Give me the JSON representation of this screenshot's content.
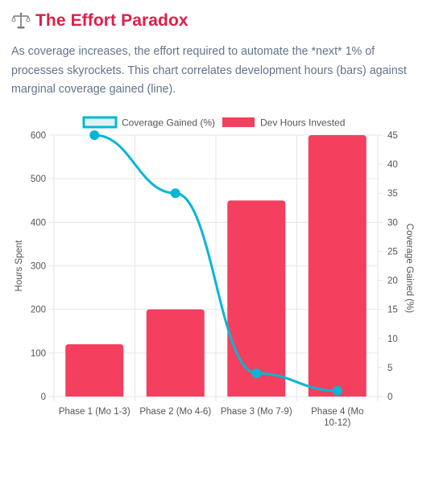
{
  "header": {
    "icon": "balance-scale-icon",
    "title": "The Effort Paradox",
    "description": "As coverage increases, the effort required to automate the *next* 1% of processes skyrockets. This chart correlates development hours (bars) against marginal coverage gained (line)."
  },
  "colors": {
    "title": "#e11d48",
    "bars": "#f43f5e",
    "line": "#06b6d4",
    "legend_line_fill": "#e0f2f5"
  },
  "chart_data": {
    "type": "bar",
    "categories": [
      [
        "Phase 1 (Mo 1-3)"
      ],
      [
        "Phase 2 (Mo 4-6)"
      ],
      [
        "Phase 3 (Mo 7-9)"
      ],
      [
        "Phase 4 (Mo",
        "10-12)"
      ]
    ],
    "series": [
      {
        "name": "Dev Hours Invested",
        "type": "bar",
        "axis": "left",
        "values": [
          120,
          200,
          450,
          600
        ]
      },
      {
        "name": "Coverage Gained (%)",
        "type": "line",
        "axis": "right",
        "values": [
          45,
          35,
          4,
          1
        ]
      }
    ],
    "ylabel": "Hours Spent",
    "y2label": "Coverage Gained (%)",
    "ylim": [
      0,
      600
    ],
    "y2lim": [
      0,
      45
    ],
    "yticks": [
      0,
      100,
      200,
      300,
      400,
      500,
      600
    ],
    "y2ticks": [
      0,
      5,
      10,
      15,
      20,
      25,
      30,
      35,
      40,
      45
    ],
    "legend": [
      "Coverage Gained (%)",
      "Dev Hours Invested"
    ],
    "legend_position": "top",
    "grid": true
  }
}
